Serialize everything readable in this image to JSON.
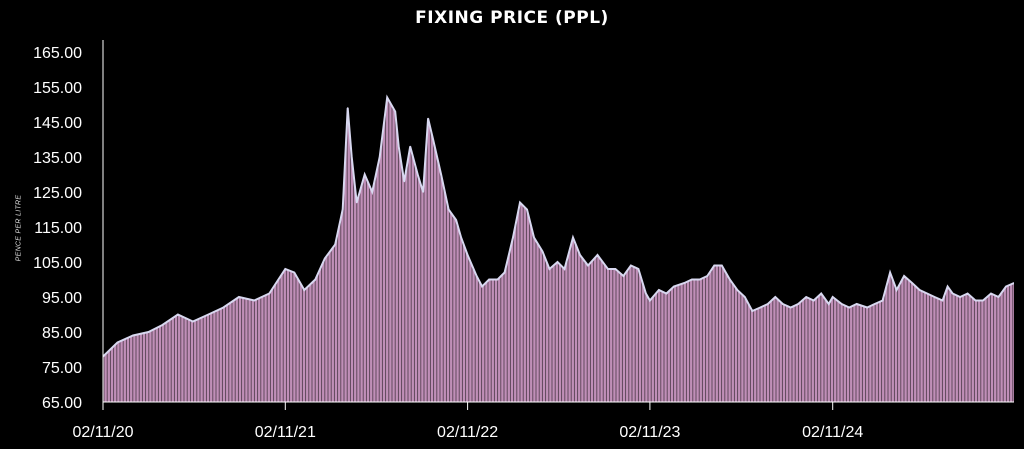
{
  "chart_data": {
    "type": "area",
    "title": "FIXING PRICE (PPL)",
    "xlabel": "",
    "ylabel": "PENCE PER LITRE",
    "ylim": [
      65,
      165
    ],
    "y_ticks": [
      "65.00",
      "75.00",
      "85.00",
      "95.00",
      "105.00",
      "115.00",
      "125.00",
      "135.00",
      "145.00",
      "155.00",
      "165.00"
    ],
    "x_ticks": [
      "02/11/20",
      "02/11/21",
      "02/11/22",
      "02/11/23",
      "02/11/24"
    ],
    "x_range": [
      "2020-11-02",
      "2025-10-31"
    ],
    "grid": false,
    "colors": {
      "fill": "#c08fb8",
      "line": "#d8d8f0",
      "axis": "#ffffff",
      "background": "#000000"
    },
    "series": [
      {
        "x": [
          "2020-11-02",
          "2020-12-01",
          "2021-01-01",
          "2021-02-01",
          "2021-03-01",
          "2021-04-01",
          "2021-05-01",
          "2021-06-01",
          "2021-07-01",
          "2021-08-01",
          "2021-09-01",
          "2021-10-01",
          "2021-11-02",
          "2021-11-20",
          "2021-12-10",
          "2022-01-01",
          "2022-01-20",
          "2022-02-10",
          "2022-02-25",
          "2022-03-07",
          "2022-03-15",
          "2022-03-25",
          "2022-04-10",
          "2022-04-25",
          "2022-05-10",
          "2022-05-25",
          "2022-06-10",
          "2022-06-17",
          "2022-06-28",
          "2022-07-10",
          "2022-07-25",
          "2022-08-05",
          "2022-08-15",
          "2022-08-25",
          "2022-09-10",
          "2022-09-25",
          "2022-10-10",
          "2022-10-20",
          "2022-11-02",
          "2022-11-20",
          "2022-12-01",
          "2022-12-15",
          "2023-01-01",
          "2023-01-15",
          "2023-02-01",
          "2023-02-15",
          "2023-03-01",
          "2023-03-15",
          "2023-04-01",
          "2023-04-15",
          "2023-05-01",
          "2023-05-15",
          "2023-06-01",
          "2023-06-15",
          "2023-07-01",
          "2023-07-20",
          "2023-08-10",
          "2023-08-25",
          "2023-09-10",
          "2023-09-25",
          "2023-10-10",
          "2023-10-25",
          "2023-11-02",
          "2023-11-20",
          "2023-12-05",
          "2023-12-20",
          "2024-01-10",
          "2024-01-25",
          "2024-02-10",
          "2024-02-25",
          "2024-03-10",
          "2024-03-25",
          "2024-04-10",
          "2024-04-25",
          "2024-05-10",
          "2024-05-25",
          "2024-06-10",
          "2024-06-25",
          "2024-07-10",
          "2024-07-25",
          "2024-08-10",
          "2024-08-25",
          "2024-09-10",
          "2024-09-25",
          "2024-10-10",
          "2024-10-25",
          "2024-11-02",
          "2024-11-20",
          "2024-12-05",
          "2024-12-20",
          "2025-01-10",
          "2025-01-25",
          "2025-02-10",
          "2025-02-25",
          "2025-03-10",
          "2025-03-25",
          "2025-04-10",
          "2025-04-25",
          "2025-05-10",
          "2025-05-25",
          "2025-06-10",
          "2025-06-20",
          "2025-06-30",
          "2025-07-15",
          "2025-07-30",
          "2025-08-15",
          "2025-08-30",
          "2025-09-15",
          "2025-09-30",
          "2025-10-15",
          "2025-10-31"
        ],
        "values": [
          78,
          82,
          84,
          85,
          87,
          90,
          88,
          90,
          92,
          95,
          94,
          96,
          103,
          102,
          97,
          100,
          106,
          110,
          120,
          149,
          135,
          122,
          130,
          125,
          135,
          152,
          148,
          138,
          128,
          138,
          130,
          125,
          146,
          140,
          130,
          120,
          117,
          112,
          107,
          101,
          98,
          100,
          100,
          102,
          112,
          122,
          120,
          112,
          108,
          103,
          105,
          103,
          112,
          107,
          104,
          107,
          103,
          103,
          101,
          104,
          103,
          96,
          94,
          97,
          96,
          98,
          99,
          100,
          100,
          101,
          104,
          104,
          100,
          97,
          95,
          91,
          92,
          93,
          95,
          93,
          92,
          93,
          95,
          94,
          96,
          93,
          95,
          93,
          92,
          93,
          92,
          93,
          94,
          102,
          97,
          101,
          99,
          97,
          96,
          95,
          94,
          98,
          96,
          95,
          96,
          94,
          94,
          96,
          95,
          98,
          99
        ]
      }
    ]
  }
}
